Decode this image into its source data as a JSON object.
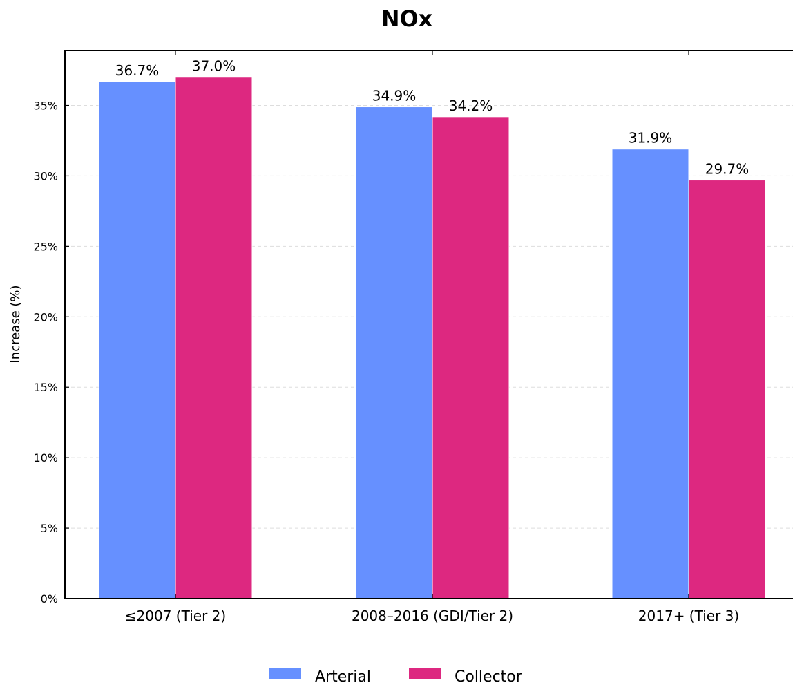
{
  "chart_data": {
    "type": "bar",
    "title": "NOx",
    "xlabel": "",
    "ylabel": "Increase (%)",
    "categories": [
      "≤2007 (Tier 2)",
      "2008–2016 (GDI/Tier 2)",
      "2017+ (Tier 3)"
    ],
    "series": [
      {
        "name": "Arterial",
        "values": [
          36.7,
          34.9,
          31.9
        ],
        "labels": [
          "36.7%",
          "34.9%",
          "31.9%"
        ],
        "color": "#6690FF"
      },
      {
        "name": "Collector",
        "values": [
          37.0,
          34.2,
          29.7
        ],
        "labels": [
          "37.0%",
          "34.2%",
          "29.7%"
        ],
        "color": "#DD2880"
      }
    ],
    "ylim": [
      0,
      38.9
    ],
    "yticks": [
      0,
      5,
      10,
      15,
      20,
      25,
      30,
      35
    ],
    "ytick_labels": [
      "0%",
      "5%",
      "10%",
      "15%",
      "20%",
      "25%",
      "30%",
      "35%"
    ],
    "grid": "y dashed",
    "legend_position": "bottom-center"
  }
}
